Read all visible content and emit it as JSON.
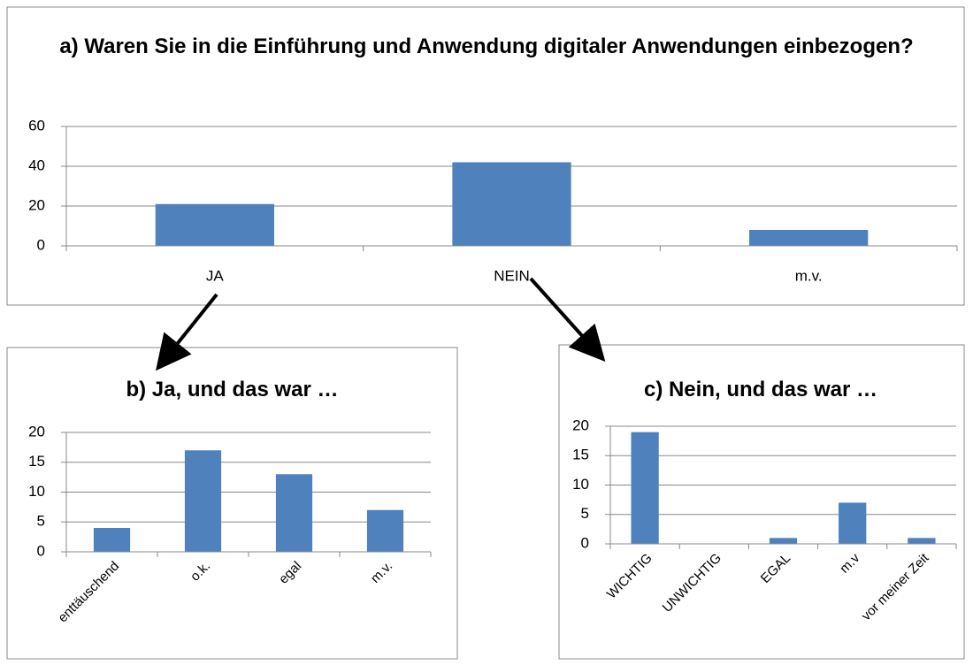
{
  "chart_data": [
    {
      "type": "bar",
      "title": "a) Waren Sie in die Einführung und Anwendung digitaler Anwendungen einbezogen?",
      "categories": [
        "JA",
        "NEIN",
        "m.v."
      ],
      "values": [
        21,
        42,
        8
      ],
      "color": "#4f81bd",
      "ylim": [
        0,
        60
      ],
      "yticks": [
        0,
        20,
        40,
        60
      ],
      "grid": true
    },
    {
      "type": "bar",
      "title": "b) Ja, und das war …",
      "categories": [
        "enttäuschend",
        "o.k.",
        "egal",
        "m.v."
      ],
      "values": [
        4,
        17,
        13,
        7
      ],
      "color": "#4f81bd",
      "ylim": [
        0,
        20
      ],
      "yticks": [
        0,
        5,
        10,
        15,
        20
      ],
      "grid": true
    },
    {
      "type": "bar",
      "title": "c) Nein, und das war …",
      "categories": [
        "WICHTIG",
        "UNWICHTIG",
        "EGAL",
        "m.v",
        "vor meiner Zeit"
      ],
      "values": [
        19,
        0,
        1,
        7,
        1
      ],
      "color": "#4f81bd",
      "ylim": [
        0,
        20
      ],
      "yticks": [
        0,
        5,
        10,
        15,
        20
      ],
      "grid": true
    }
  ]
}
